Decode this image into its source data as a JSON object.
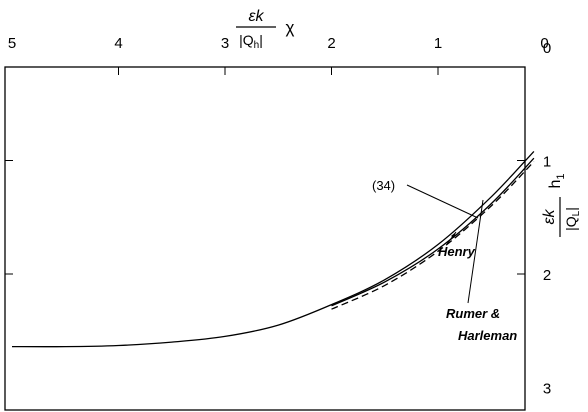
{
  "chart_data": {
    "type": "line",
    "x_axis": {
      "position": "top",
      "label_numerator": "εk",
      "label_denominator": "|Q",
      "label_denominator_sub": "h",
      "label_suffix": "χ",
      "range": [
        5,
        0
      ],
      "ticks": [
        "5",
        "4",
        "3",
        "2",
        "1",
        "0"
      ],
      "tick_values": [
        5,
        4,
        3,
        2,
        1,
        0
      ]
    },
    "y_axis": {
      "position": "right",
      "label_numerator": "εk",
      "label_denominator": "|Q",
      "label_denominator_sub": "L",
      "label_suffix": "h",
      "label_suffix_sub": "1",
      "range": [
        0,
        3
      ],
      "ticks": [
        "0",
        "1",
        "2",
        "3"
      ],
      "tick_values": [
        0,
        1,
        2,
        3
      ]
    },
    "grid": false,
    "series": [
      {
        "label_ref": "annotations.0",
        "style": "solid",
        "x": [
          5.0,
          4.5,
          4.0,
          3.5,
          3.0,
          2.5,
          2.0,
          1.5,
          1.0,
          0.5,
          0.1
        ],
        "y": [
          2.64,
          2.64,
          2.63,
          2.6,
          2.55,
          2.45,
          2.27,
          2.05,
          1.74,
          1.32,
          0.92
        ]
      },
      {
        "label_ref": "annotations.1",
        "style": "dashed",
        "x": [
          2.0,
          1.5,
          1.0,
          0.5,
          0.1
        ],
        "y": [
          2.31,
          2.1,
          1.8,
          1.4,
          1.01
        ]
      },
      {
        "label_ref": "annotations.2",
        "style": "solid",
        "x": [
          2.0,
          1.5,
          1.0,
          0.5,
          0.1
        ],
        "y": [
          2.28,
          2.07,
          1.78,
          1.38,
          0.98
        ]
      }
    ],
    "annotations": [
      {
        "text": "(34)",
        "italic": false
      },
      {
        "text": "Henry",
        "italic": true
      },
      {
        "text": "Rumer &",
        "italic": true
      },
      {
        "text": "Harleman",
        "italic": true
      }
    ]
  }
}
